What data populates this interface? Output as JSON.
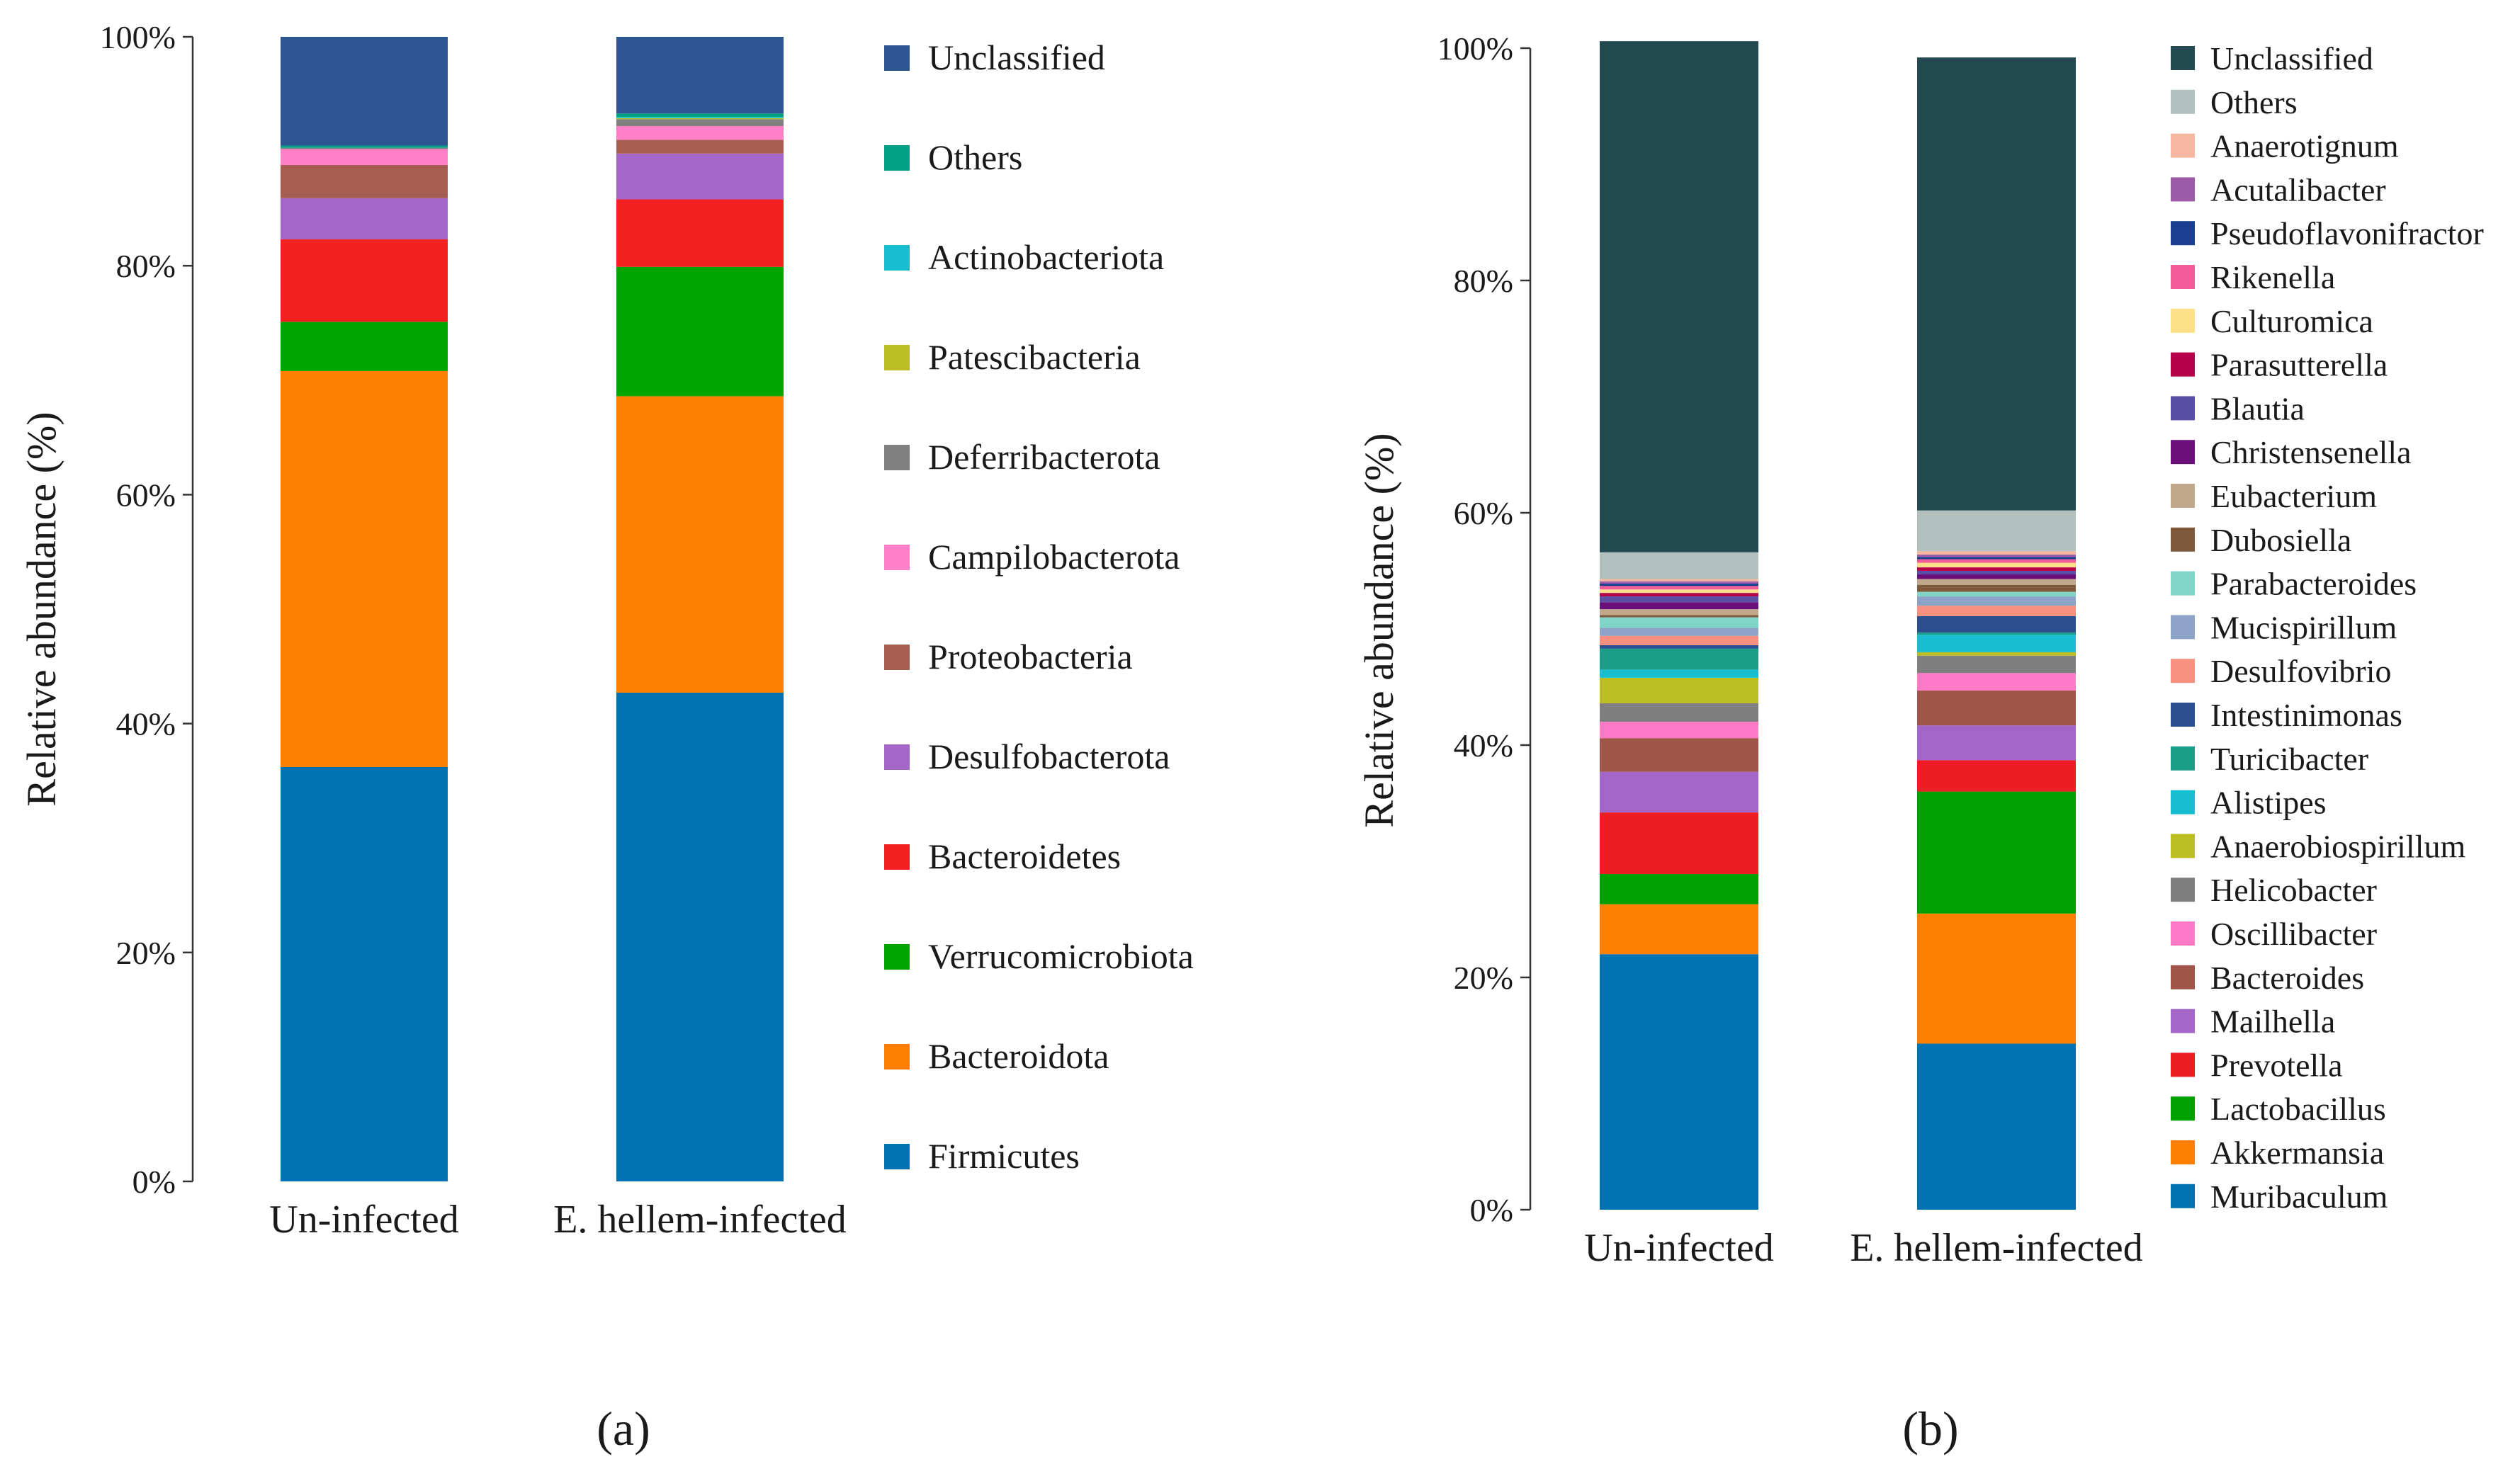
{
  "figure": {
    "label_a": "(a)",
    "label_b": "(b)"
  },
  "chart_data": [
    {
      "type": "bar",
      "stacked": true,
      "panel": "a",
      "title": "",
      "xlabel": "",
      "ylabel": "Relative abundance (%)",
      "ylim": [
        0,
        100
      ],
      "yticks": [
        "0%",
        "20%",
        "40%",
        "60%",
        "80%",
        "100%"
      ],
      "categories": [
        "Un-infected",
        "E. hellem-infected"
      ],
      "series": [
        {
          "name": "Firmicutes",
          "color": "#0072b2",
          "values": [
            36.2,
            42.7
          ]
        },
        {
          "name": "Bacteroidota",
          "color": "#ff7f00",
          "values": [
            34.6,
            25.9
          ]
        },
        {
          "name": "Verrucomicrobiota",
          "color": "#00a500",
          "values": [
            4.3,
            11.3
          ]
        },
        {
          "name": "Bacteroidetes",
          "color": "#f22020",
          "values": [
            7.2,
            5.9
          ]
        },
        {
          "name": "Desulfobacterota",
          "color": "#a466c8",
          "values": [
            3.6,
            4.0
          ]
        },
        {
          "name": "Proteobacteria",
          "color": "#a65e52",
          "values": [
            2.9,
            1.2
          ]
        },
        {
          "name": "Campilobacterota",
          "color": "#ff7fc8",
          "values": [
            1.4,
            1.2
          ]
        },
        {
          "name": "Deferribacterota",
          "color": "#808080",
          "values": [
            0.1,
            0.6
          ]
        },
        {
          "name": "Patescibacteria",
          "color": "#bcbd22",
          "values": [
            0.0,
            0.1
          ]
        },
        {
          "name": "Actinobacteriota",
          "color": "#17becf",
          "values": [
            0.0,
            0.1
          ]
        },
        {
          "name": "Others",
          "color": "#00a087",
          "values": [
            0.2,
            0.3
          ]
        },
        {
          "name": "Unclassified",
          "color": "#2c5592",
          "values": [
            9.5,
            6.7
          ]
        }
      ]
    },
    {
      "type": "bar",
      "stacked": true,
      "panel": "b",
      "title": "",
      "xlabel": "",
      "ylabel": "Relative abundance (%)",
      "ylim": [
        0,
        100
      ],
      "yticks": [
        "0%",
        "20%",
        "40%",
        "60%",
        "80%",
        "100%"
      ],
      "categories": [
        "Un-infected",
        "E. hellem-infected"
      ],
      "series": [
        {
          "name": "Muribaculum",
          "color": "#0072b2",
          "values": [
            22.0,
            14.3
          ]
        },
        {
          "name": "Akkermansia",
          "color": "#ff7f00",
          "values": [
            4.3,
            11.2
          ]
        },
        {
          "name": "Lactobacillus",
          "color": "#00a000",
          "values": [
            2.6,
            10.5
          ]
        },
        {
          "name": "Prevotella",
          "color": "#ee1c25",
          "values": [
            5.3,
            2.7
          ]
        },
        {
          "name": "Mailhella",
          "color": "#a365c8",
          "values": [
            3.5,
            3.0
          ]
        },
        {
          "name": "Bacteroides",
          "color": "#a0554a",
          "values": [
            2.9,
            3.0
          ]
        },
        {
          "name": "Oscillibacter",
          "color": "#ff7ac6",
          "values": [
            1.4,
            1.5
          ]
        },
        {
          "name": "Helicobacter",
          "color": "#7f7f7f",
          "values": [
            1.6,
            1.5
          ]
        },
        {
          "name": "Anaerobiospirillum",
          "color": "#bcbd22",
          "values": [
            2.2,
            0.3
          ]
        },
        {
          "name": "Alistipes",
          "color": "#17becf",
          "values": [
            0.7,
            1.5
          ]
        },
        {
          "name": "Turicibacter",
          "color": "#1a9e8a",
          "values": [
            1.8,
            0.2
          ]
        },
        {
          "name": "Intestinimonas",
          "color": "#2b4f8c",
          "values": [
            0.3,
            1.4
          ]
        },
        {
          "name": "Desulfovibrio",
          "color": "#f7907f",
          "values": [
            0.8,
            0.9
          ]
        },
        {
          "name": "Mucispirillum",
          "color": "#8fa3c9",
          "values": [
            0.7,
            0.8
          ]
        },
        {
          "name": "Parabacteroides",
          "color": "#7fd4c6",
          "values": [
            0.9,
            0.4
          ]
        },
        {
          "name": "Dubosiella",
          "color": "#7d5a3c",
          "values": [
            0.2,
            0.6
          ]
        },
        {
          "name": "Eubacterium",
          "color": "#c2a88a",
          "values": [
            0.5,
            0.5
          ]
        },
        {
          "name": "Christensenella",
          "color": "#6a0f7a",
          "values": [
            0.6,
            0.4
          ]
        },
        {
          "name": "Blautia",
          "color": "#5a4ea5",
          "values": [
            0.5,
            0.3
          ]
        },
        {
          "name": "Parasutterella",
          "color": "#b5004a",
          "values": [
            0.3,
            0.3
          ]
        },
        {
          "name": "Culturomica",
          "color": "#fde08a",
          "values": [
            0.3,
            0.4
          ]
        },
        {
          "name": "Rikenella",
          "color": "#f35a98",
          "values": [
            0.3,
            0.3
          ]
        },
        {
          "name": "Pseudoflavonifractor",
          "color": "#1a3f8f",
          "values": [
            0.2,
            0.2
          ]
        },
        {
          "name": "Acutalibacter",
          "color": "#9d5aa8",
          "values": [
            0.2,
            0.2
          ]
        },
        {
          "name": "Anaerotignum",
          "color": "#f5b7a1",
          "values": [
            0.2,
            0.3
          ]
        },
        {
          "name": "Others",
          "color": "#b1bfbd",
          "values": [
            2.3,
            3.5
          ]
        },
        {
          "name": "Unclassified",
          "color": "#244a51",
          "values": [
            44.0,
            39.0
          ]
        }
      ]
    }
  ]
}
